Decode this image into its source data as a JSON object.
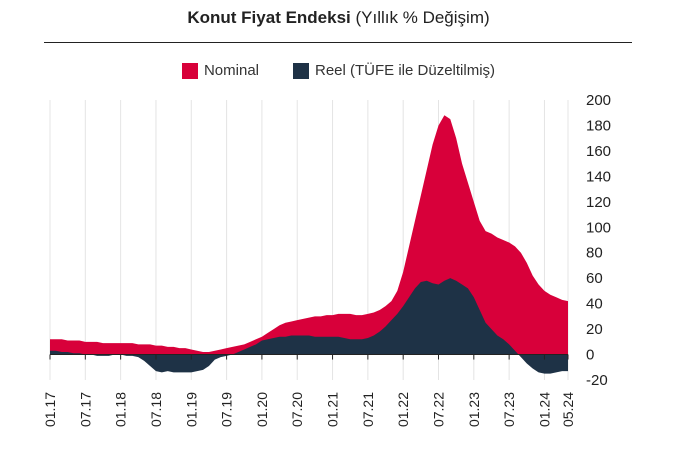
{
  "chart_data": {
    "type": "area",
    "title": "Konut Fiyat Endeksi",
    "subtitle": "(Yıllık % Değişim)",
    "xlabel": "",
    "ylabel": "",
    "ylim": [
      -20,
      200
    ],
    "yticks": [
      "200",
      "180",
      "160",
      "140",
      "120",
      "100",
      "80",
      "60",
      "40",
      "20",
      "0",
      "-20"
    ],
    "yticks_values": [
      200,
      180,
      160,
      140,
      120,
      100,
      80,
      60,
      40,
      20,
      0,
      -20
    ],
    "legend_position": "top-center",
    "grid": "vertical",
    "x_tick_labels": [
      "01.17",
      "07.17",
      "01.18",
      "07.18",
      "01.19",
      "07.19",
      "01.20",
      "07.20",
      "01.21",
      "07.21",
      "01.22",
      "07.22",
      "01.23",
      "07.23",
      "01.24",
      "05.24"
    ],
    "x_tick_month_index": [
      0,
      6,
      12,
      18,
      24,
      30,
      36,
      42,
      48,
      54,
      60,
      66,
      72,
      78,
      84,
      88
    ],
    "series": [
      {
        "name": "Nominal",
        "color": "#d8003a",
        "values": [
          12,
          12,
          12,
          11,
          11,
          11,
          10,
          10,
          10,
          9,
          9,
          9,
          9,
          9,
          9,
          8,
          8,
          8,
          7,
          7,
          6,
          6,
          5,
          5,
          4,
          3,
          2,
          2,
          3,
          4,
          5,
          6,
          7,
          8,
          10,
          12,
          14,
          17,
          20,
          23,
          25,
          26,
          27,
          28,
          29,
          30,
          30,
          31,
          31,
          32,
          32,
          32,
          31,
          31,
          32,
          33,
          35,
          38,
          42,
          50,
          65,
          85,
          105,
          125,
          145,
          165,
          180,
          188,
          185,
          170,
          150,
          135,
          120,
          105,
          97,
          95,
          92,
          90,
          88,
          85,
          80,
          72,
          62,
          55,
          50,
          47,
          45,
          43,
          42
        ]
      },
      {
        "name": "Reel (TÜFE ile Düzeltilmiş)",
        "color": "#1e3246",
        "values": [
          3,
          3,
          2,
          2,
          1,
          1,
          0,
          0,
          -1,
          -1,
          -1,
          0,
          0,
          -1,
          -1,
          -2,
          -5,
          -9,
          -13,
          -14,
          -13,
          -14,
          -14,
          -14,
          -14,
          -13,
          -12,
          -9,
          -4,
          -2,
          -1,
          0,
          2,
          4,
          6,
          8,
          11,
          12,
          13,
          14,
          14,
          15,
          15,
          15,
          15,
          14,
          14,
          14,
          14,
          14,
          13,
          12,
          12,
          12,
          13,
          15,
          18,
          22,
          27,
          32,
          38,
          45,
          52,
          57,
          58,
          56,
          55,
          58,
          60,
          58,
          55,
          52,
          45,
          35,
          25,
          20,
          15,
          12,
          8,
          3,
          -2,
          -7,
          -11,
          -14,
          -15,
          -15,
          -14,
          -13,
          -13
        ]
      }
    ]
  }
}
